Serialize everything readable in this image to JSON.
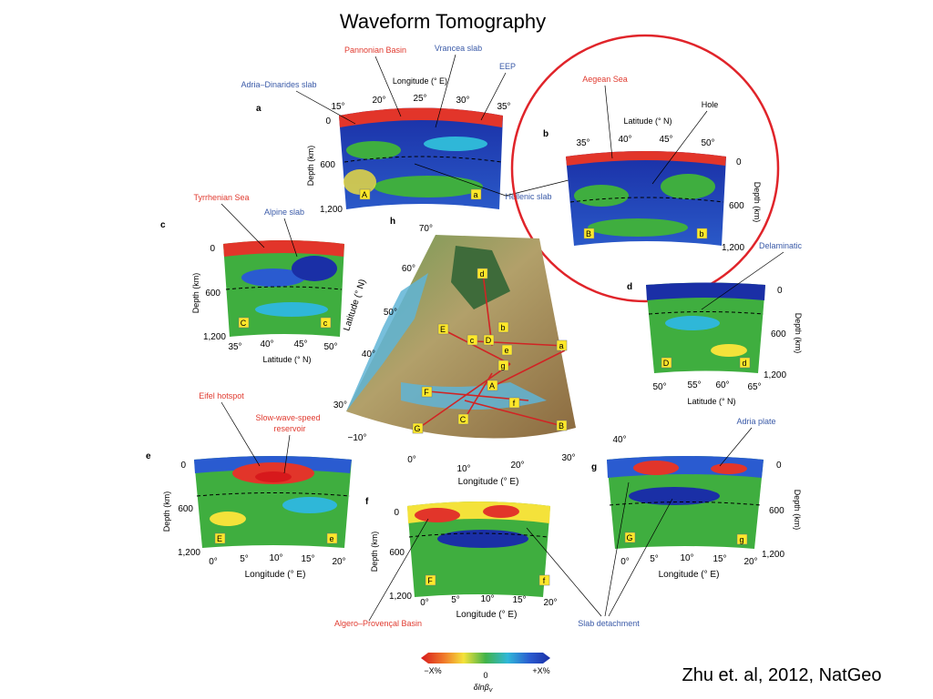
{
  "slide": {
    "title": "Waveform Tomography",
    "citation": "Zhu et. al, 2012, NatGeo"
  },
  "colors": {
    "red_ann": "#e03a2f",
    "blue_ann": "#3a5aa8",
    "highlight_circle": "#e0242a",
    "slow": "#d7191c",
    "fast": "#1a2fa6",
    "neutral": "#3fae3f"
  },
  "panels": {
    "a": {
      "letter": "a",
      "axis_title": "Longitude (° E)",
      "ticks": [
        "15°",
        "20°",
        "25°",
        "30°",
        "35°"
      ],
      "depth_label": "Depth (km)",
      "depth_ticks": [
        "0",
        "600",
        "1,200"
      ],
      "start": "A",
      "end": "a"
    },
    "b": {
      "letter": "b",
      "axis_title": "Latitude (° N)",
      "ticks": [
        "35°",
        "40°",
        "45°",
        "50°"
      ],
      "depth_label": "Depth (km)",
      "depth_ticks": [
        "0",
        "600",
        "1,200"
      ],
      "start": "B",
      "end": "b"
    },
    "c": {
      "letter": "c",
      "axis_title": "Latitude (° N)",
      "ticks": [
        "35°",
        "40°",
        "45°",
        "50°"
      ],
      "depth_label": "Depth (km)",
      "depth_ticks": [
        "0",
        "600",
        "1,200"
      ],
      "start": "C",
      "end": "c"
    },
    "d": {
      "letter": "d",
      "axis_title": "Latitude (° N)",
      "ticks": [
        "50°",
        "55°",
        "60°",
        "65°"
      ],
      "depth_label": "Depth (km)",
      "depth_ticks": [
        "0",
        "600",
        "1,200"
      ],
      "start": "D",
      "end": "d"
    },
    "e": {
      "letter": "e",
      "axis_title": "Longitude (° E)",
      "ticks": [
        "0°",
        "5°",
        "10°",
        "15°",
        "20°"
      ],
      "depth_label": "Depth (km)",
      "depth_ticks": [
        "0",
        "600",
        "1,200"
      ],
      "start": "E",
      "end": "e"
    },
    "f": {
      "letter": "f",
      "axis_title": "Longitude (° E)",
      "ticks": [
        "0°",
        "5°",
        "10°",
        "15°",
        "20°"
      ],
      "depth_label": "Depth (km)",
      "depth_ticks": [
        "0",
        "600",
        "1,200"
      ],
      "start": "F",
      "end": "f"
    },
    "g": {
      "letter": "g",
      "axis_title": "Longitude (° E)",
      "ticks": [
        "0°",
        "5°",
        "10°",
        "15°",
        "20°"
      ],
      "depth_label": "Depth (km)",
      "depth_ticks": [
        "0",
        "600",
        "1,200"
      ],
      "start": "G",
      "end": "g"
    },
    "h": {
      "letter": "h",
      "lon_title": "Longitude (° E)",
      "lat_title": "Latitude (° N)",
      "lon_ticks": [
        "−10°",
        "0°",
        "10°",
        "20°",
        "30°",
        "40°"
      ],
      "lat_ticks": [
        "30°",
        "40°",
        "50°",
        "60°",
        "70°"
      ]
    }
  },
  "annotations": {
    "pannonian": "Pannonian Basin",
    "vrancea": "Vrancea slab",
    "eep": "EEP",
    "adria_dinarides": "Adria–Dinarides slab",
    "hellenic": "Hellenic slab",
    "aegean": "Aegean Sea",
    "hole": "Hole",
    "tyrrhenian": "Tyrrhenian Sea",
    "alpine": "Alpine slab",
    "delamination": "Delaminatic",
    "eifel": "Eifel hotspot",
    "reservoir_1": "Slow-wave-speed",
    "reservoir_2": "reservoir",
    "adria_plate": "Adria plate",
    "algero": "Algero–Provençal Basin",
    "slab_detachment": "Slab detachment"
  },
  "colorbar": {
    "left": "−X%",
    "mid": "0",
    "right": "+X%",
    "label": "δlnβ",
    "label_sub": "v"
  }
}
